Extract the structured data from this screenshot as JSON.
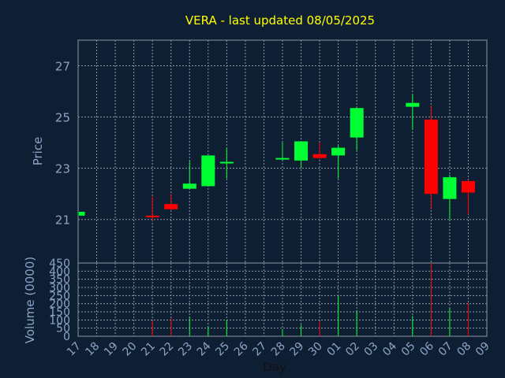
{
  "chart_data": {
    "type": "candlestick",
    "title": "VERA - last updated 08/05/2025",
    "xlabel": "Day",
    "colors": {
      "background": "#0f1f33",
      "title": "#ffff00",
      "axis_text": "#8aa4c8",
      "grid": "#8a96a6",
      "up": "#00ff33",
      "down": "#ff0000",
      "frame": "#8a96a6"
    },
    "x_tick_labels": [
      "17",
      "18",
      "19",
      "20",
      "21",
      "22",
      "23",
      "24",
      "25",
      "26",
      "27",
      "28",
      "29",
      "30",
      "01",
      "02",
      "03",
      "04",
      "05",
      "06",
      "07",
      "08",
      "09"
    ],
    "price_panel": {
      "ylabel": "Price",
      "ylim": [
        19.3,
        28.0
      ],
      "yticks": [
        21,
        23,
        25,
        27
      ],
      "grid": true
    },
    "volume_panel": {
      "ylabel": "Volume (0000)",
      "ylim": [
        0,
        450
      ],
      "yticks": [
        0,
        50,
        100,
        150,
        200,
        250,
        300,
        350,
        400,
        450
      ],
      "grid": true
    },
    "candles": [
      {
        "x": "17",
        "open": 21.15,
        "high": 21.3,
        "low": 21.15,
        "close": 21.3,
        "volume": 0
      },
      {
        "x": "21",
        "open": 21.15,
        "high": 21.9,
        "low": 20.95,
        "close": 21.1,
        "volume": 95
      },
      {
        "x": "22",
        "open": 21.6,
        "high": 22.0,
        "low": 21.35,
        "close": 21.4,
        "volume": 110
      },
      {
        "x": "23",
        "open": 22.2,
        "high": 23.3,
        "low": 22.2,
        "close": 22.4,
        "volume": 120
      },
      {
        "x": "24",
        "open": 22.3,
        "high": 23.5,
        "low": 22.3,
        "close": 23.5,
        "volume": 60
      },
      {
        "x": "25",
        "open": 23.2,
        "high": 23.8,
        "low": 22.6,
        "close": 23.25,
        "volume": 100
      },
      {
        "x": "28",
        "open": 23.35,
        "high": 24.0,
        "low": 23.3,
        "close": 23.4,
        "volume": 45
      },
      {
        "x": "29",
        "open": 23.3,
        "high": 24.05,
        "low": 23.0,
        "close": 24.05,
        "volume": 70
      },
      {
        "x": "30",
        "open": 23.55,
        "high": 24.0,
        "low": 23.35,
        "close": 23.4,
        "volume": 90
      },
      {
        "x": "01",
        "open": 23.5,
        "high": 23.9,
        "low": 22.6,
        "close": 23.8,
        "volume": 250
      },
      {
        "x": "02",
        "open": 24.2,
        "high": 25.35,
        "low": 23.7,
        "close": 25.35,
        "volume": 160
      },
      {
        "x": "05",
        "open": 25.4,
        "high": 25.9,
        "low": 24.5,
        "close": 25.55,
        "volume": 125
      },
      {
        "x": "06",
        "open": 24.9,
        "high": 25.45,
        "low": 21.4,
        "close": 22.0,
        "volume": 450
      },
      {
        "x": "07",
        "open": 21.8,
        "high": 22.75,
        "low": 21.0,
        "close": 22.65,
        "volume": 175
      },
      {
        "x": "08",
        "open": 22.5,
        "high": 22.55,
        "low": 21.2,
        "close": 22.05,
        "volume": 205
      }
    ]
  }
}
